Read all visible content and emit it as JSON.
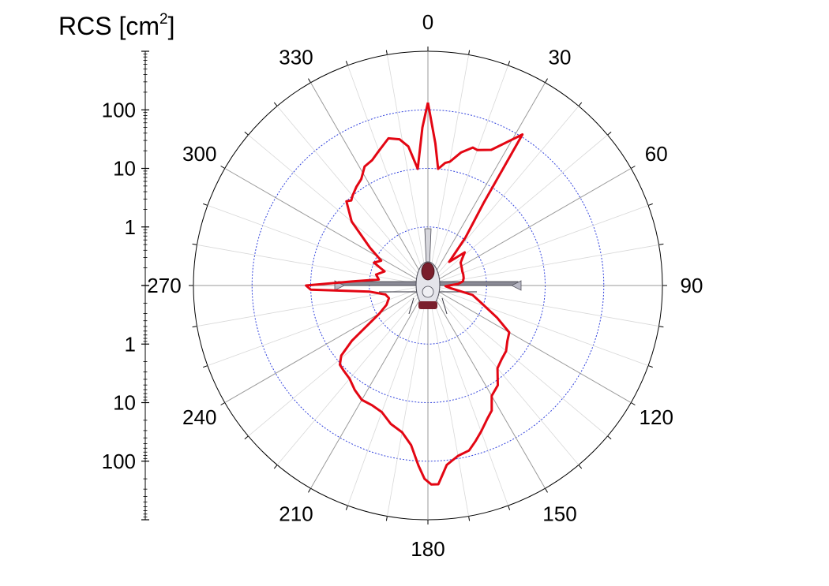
{
  "chart_data": {
    "type": "line",
    "subtype": "polar",
    "axis_title": "RCS [cm",
    "axis_title_sup": "2",
    "axis_title_end": "]",
    "angle_tick_labels": [
      "0",
      "30",
      "60",
      "90",
      "120",
      "150",
      "180",
      "210",
      "240",
      "270",
      "300",
      "330"
    ],
    "radial_scale": "log",
    "radial_range": [
      0.1,
      1000
    ],
    "radial_ticks": [
      1,
      10,
      100
    ],
    "radial_tick_labels": [
      "1",
      "10",
      "100"
    ],
    "angle_direction": "clockwise",
    "angle_zero": "top",
    "grid": true,
    "series": [
      {
        "color": "#e30613",
        "points": [
          [
            0,
            133
          ],
          [
            3,
            27
          ],
          [
            5,
            10
          ],
          [
            8,
            13
          ],
          [
            10,
            14
          ],
          [
            14,
            22
          ],
          [
            18,
            30
          ],
          [
            20,
            29
          ],
          [
            25,
            36
          ],
          [
            32,
            110
          ],
          [
            34,
            5
          ],
          [
            38,
            1.1
          ],
          [
            42,
            0.35
          ],
          [
            48,
            0.7
          ],
          [
            55,
            0.48
          ],
          [
            62,
            0.45
          ],
          [
            68,
            0.43
          ],
          [
            72,
            0.43
          ],
          [
            78,
            0.42
          ],
          [
            83,
            0.4
          ],
          [
            87,
            0.33
          ],
          [
            92,
            0.2
          ],
          [
            97,
            0.25
          ],
          [
            102,
            0.6
          ],
          [
            108,
            0.9
          ],
          [
            115,
            2
          ],
          [
            120,
            4
          ],
          [
            125,
            4.5
          ],
          [
            130,
            5.5
          ],
          [
            135,
            6
          ],
          [
            140,
            7
          ],
          [
            145,
            12
          ],
          [
            150,
            15
          ],
          [
            153,
            25
          ],
          [
            156,
            31
          ],
          [
            160,
            45
          ],
          [
            163,
            60
          ],
          [
            166,
            80
          ],
          [
            170,
            90
          ],
          [
            174,
            120
          ],
          [
            177,
            250
          ],
          [
            179,
            250
          ],
          [
            181,
            200
          ],
          [
            183,
            120
          ],
          [
            186,
            55
          ],
          [
            190,
            35
          ],
          [
            195,
            28
          ],
          [
            200,
            20
          ],
          [
            205,
            18
          ],
          [
            210,
            18
          ],
          [
            215,
            15
          ],
          [
            220,
            12
          ],
          [
            225,
            11
          ],
          [
            228,
            10.5
          ],
          [
            231,
            8
          ],
          [
            234,
            4
          ],
          [
            240,
            0.9
          ],
          [
            245,
            0.6
          ],
          [
            252,
            0.5
          ],
          [
            258,
            0.55
          ],
          [
            264,
            1
          ],
          [
            268,
            10
          ],
          [
            270,
            12
          ],
          [
            273,
            2
          ],
          [
            277,
            0.7
          ],
          [
            282,
            0.8
          ],
          [
            288,
            0.6
          ],
          [
            293,
            1.0
          ],
          [
            298,
            0.8
          ],
          [
            303,
            1.5
          ],
          [
            310,
            5
          ],
          [
            316,
            10
          ],
          [
            318,
            9
          ],
          [
            320,
            10
          ],
          [
            324,
            12
          ],
          [
            328,
            14
          ],
          [
            332,
            20
          ],
          [
            336,
            22
          ],
          [
            340,
            28
          ],
          [
            345,
            40
          ],
          [
            349,
            35
          ],
          [
            352,
            25
          ],
          [
            355,
            10
          ],
          [
            358,
            50
          ],
          [
            360,
            133
          ]
        ]
      }
    ]
  }
}
